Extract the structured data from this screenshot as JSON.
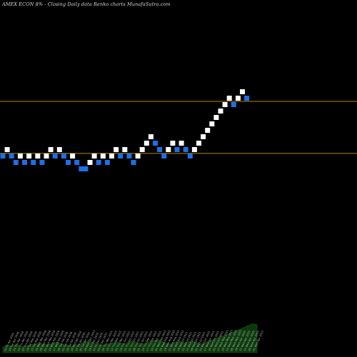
{
  "header": {
    "title": "AMEX  ECON  8% -  Closing Daily data  Renko  charts MunafaSutra.com"
  },
  "colors": {
    "background": "#000000",
    "up_brick": "#ffffff",
    "down_brick": "#1e6fe8",
    "level_line": "#b8860b",
    "volume_fill": "#0b3a0b",
    "label_text": "#bbbbbb"
  },
  "chart_data": {
    "type": "renko",
    "title": "AMEX  ECON  8% -  Closing Daily data  Renko  charts MunafaSutra.com",
    "bricks": [
      {
        "dir": "down",
        "level": 19
      },
      {
        "dir": "up",
        "level": 20
      },
      {
        "dir": "down",
        "level": 19
      },
      {
        "dir": "down",
        "level": 18
      },
      {
        "dir": "up",
        "level": 19
      },
      {
        "dir": "down",
        "level": 18
      },
      {
        "dir": "up",
        "level": 19
      },
      {
        "dir": "down",
        "level": 18
      },
      {
        "dir": "up",
        "level": 19
      },
      {
        "dir": "down",
        "level": 18
      },
      {
        "dir": "up",
        "level": 19
      },
      {
        "dir": "up",
        "level": 20
      },
      {
        "dir": "down",
        "level": 19
      },
      {
        "dir": "up",
        "level": 20
      },
      {
        "dir": "down",
        "level": 19
      },
      {
        "dir": "down",
        "level": 18
      },
      {
        "dir": "up",
        "level": 19
      },
      {
        "dir": "down",
        "level": 18
      },
      {
        "dir": "down",
        "level": 17
      },
      {
        "dir": "down",
        "level": 17
      },
      {
        "dir": "up",
        "level": 18
      },
      {
        "dir": "up",
        "level": 19
      },
      {
        "dir": "down",
        "level": 18
      },
      {
        "dir": "up",
        "level": 19
      },
      {
        "dir": "down",
        "level": 18
      },
      {
        "dir": "up",
        "level": 19
      },
      {
        "dir": "up",
        "level": 20
      },
      {
        "dir": "down",
        "level": 19
      },
      {
        "dir": "up",
        "level": 20
      },
      {
        "dir": "down",
        "level": 19
      },
      {
        "dir": "down",
        "level": 18
      },
      {
        "dir": "up",
        "level": 19
      },
      {
        "dir": "up",
        "level": 20
      },
      {
        "dir": "up",
        "level": 21
      },
      {
        "dir": "up",
        "level": 22
      },
      {
        "dir": "down",
        "level": 21
      },
      {
        "dir": "down",
        "level": 20
      },
      {
        "dir": "down",
        "level": 19
      },
      {
        "dir": "up",
        "level": 20
      },
      {
        "dir": "up",
        "level": 21
      },
      {
        "dir": "down",
        "level": 20
      },
      {
        "dir": "up",
        "level": 21
      },
      {
        "dir": "down",
        "level": 20
      },
      {
        "dir": "down",
        "level": 19
      },
      {
        "dir": "up",
        "level": 20
      },
      {
        "dir": "up",
        "level": 21
      },
      {
        "dir": "up",
        "level": 22
      },
      {
        "dir": "up",
        "level": 23
      },
      {
        "dir": "up",
        "level": 24
      },
      {
        "dir": "up",
        "level": 25
      },
      {
        "dir": "up",
        "level": 26
      },
      {
        "dir": "up",
        "level": 27
      },
      {
        "dir": "up",
        "level": 28
      },
      {
        "dir": "down",
        "level": 27
      },
      {
        "dir": "up",
        "level": 28
      },
      {
        "dir": "up",
        "level": 29
      },
      {
        "dir": "down",
        "level": 28
      }
    ],
    "horizontal_levels": [
      27.5,
      19.4
    ],
    "date_labels": [
      "22 Fri Apr 2016",
      "19 Tue Apr 2016",
      "21 Thu Apr 2016",
      "14 Thu Apr 2016",
      "07 Thu Apr 2016",
      "29 Tue Mar 2016",
      "22 Tue Mar 2016",
      "16 Wed Mar 2016",
      "09 Wed Mar 2016",
      "02 Wed Mar 2016",
      "24 Wed Feb 2016",
      "17 Wed Feb 2016",
      "09 Tue Feb 2016",
      "02 Tue Feb 2016",
      "26 Tue Jan 2016",
      "20 Wed Jan 2016",
      "12 Tue Jan 2016",
      "05 Tue Jan 2016",
      "28 Mon Dec 2015",
      "18 Fri Dec 2015",
      "11 Fri Dec 2015",
      "04 Fri Dec 2015",
      "26 Thu Nov 2015",
      "19 Thu Nov 2015",
      "12 Thu Nov 2015",
      "05 Thu Nov 2015",
      "29 Thu Oct 2015",
      "22 Thu Oct 2015",
      "15 Thu Oct 2015",
      "08 Thu Oct 2015",
      "01 Thu Oct 2015",
      "24 Thu Sep 2015",
      "17 Thu Sep 2015",
      "10 Thu Sep 2015",
      "02 Wed Sep 2015",
      "26 Wed Aug 2015",
      "19 Wed Aug 2015",
      "12 Wed Aug 2015",
      "05 Wed Aug 2015",
      "29 Wed Jul 2015",
      "22 Wed Jul 2015",
      "15 Wed Jul 2015",
      "08 Wed Jul 2015",
      "01 Wed Jul 2015",
      "24 Wed Jun 2015",
      "17 Wed Jun 2015",
      "10 Wed Jun 2015",
      "03 Wed Jun 2015",
      "27 Wed May 2015",
      "20 Wed May 2015",
      "13 Wed May 2015",
      "06 Wed May 2015",
      "29 Wed Apr 2015",
      "22 Wed Apr 2015",
      "15 Wed Apr 2015",
      "08 Wed Apr 2015",
      "01 Wed Apr 2015"
    ],
    "volume": [
      6,
      8,
      7,
      9,
      6,
      7,
      8,
      9,
      10,
      9,
      8,
      10,
      11,
      9,
      8,
      7,
      8,
      9,
      11,
      12,
      10,
      9,
      8,
      9,
      10,
      11,
      10,
      9,
      12,
      11,
      10,
      9,
      11,
      12,
      13,
      12,
      10,
      9,
      11,
      12,
      10,
      11,
      12,
      10,
      9,
      11,
      13,
      15,
      17,
      18,
      20,
      22,
      24,
      26,
      28,
      30,
      29
    ]
  }
}
